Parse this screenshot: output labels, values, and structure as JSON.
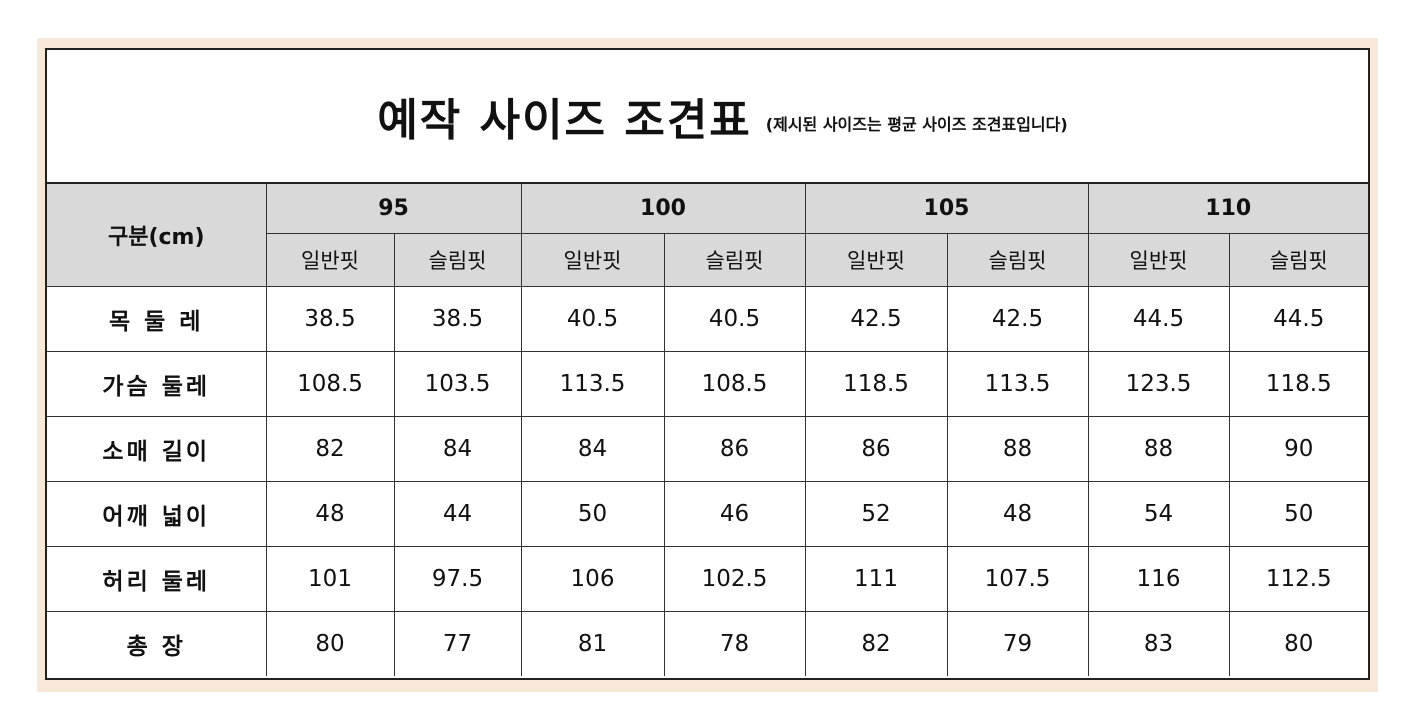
{
  "title": "예작 사이즈 조견표",
  "subtitle": "(제시된 사이즈는 평균 사이즈 조견표입니다)",
  "corner_label": "구분(cm)",
  "sizes": [
    "95",
    "100",
    "105",
    "110"
  ],
  "fits": [
    "일반핏",
    "슬림핏"
  ],
  "rows": [
    {
      "label": "목 둘 레",
      "values": [
        "38.5",
        "38.5",
        "40.5",
        "40.5",
        "42.5",
        "42.5",
        "44.5",
        "44.5"
      ]
    },
    {
      "label": "가슴 둘레",
      "values": [
        "108.5",
        "103.5",
        "113.5",
        "108.5",
        "118.5",
        "113.5",
        "123.5",
        "118.5"
      ]
    },
    {
      "label": "소매 길이",
      "values": [
        "82",
        "84",
        "84",
        "86",
        "86",
        "88",
        "88",
        "90"
      ]
    },
    {
      "label": "어깨 넓이",
      "values": [
        "48",
        "44",
        "50",
        "46",
        "52",
        "48",
        "54",
        "50"
      ]
    },
    {
      "label": "허리 둘레",
      "values": [
        "101",
        "97.5",
        "106",
        "102.5",
        "111",
        "107.5",
        "116",
        "112.5"
      ]
    },
    {
      "label": "총  장",
      "values": [
        "80",
        "77",
        "81",
        "78",
        "82",
        "79",
        "83",
        "80"
      ]
    }
  ],
  "colors": {
    "header_bg": "#d9d9d9",
    "frame_bg": "#f8e8da",
    "border": "#222222"
  }
}
